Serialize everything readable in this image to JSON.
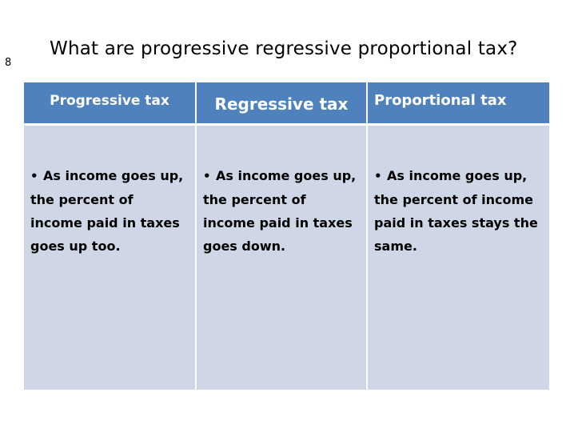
{
  "slide": {
    "number": "8",
    "title": "What are progressive regressive proportional tax?"
  },
  "table": {
    "headers": [
      "Progressive tax",
      "Regressive tax",
      "Proportional tax"
    ],
    "cells": [
      "As income goes up, the percent of income paid in taxes goes up too.",
      "As income goes up, the percent of income paid in taxes goes down.",
      "As income goes up, the percent of income paid in taxes stays the same."
    ]
  },
  "colors": {
    "header_fill": "#4f81bd",
    "body_fill": "#cfd6e6",
    "header_text": "#ffffff"
  }
}
